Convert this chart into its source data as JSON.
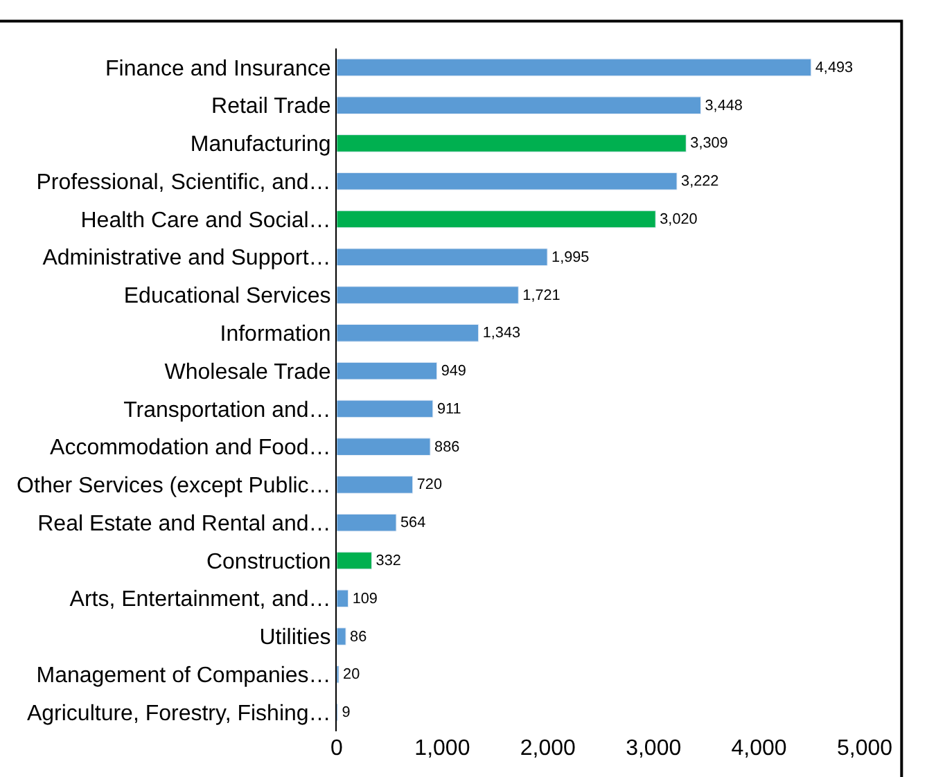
{
  "chart_data": {
    "type": "bar",
    "orientation": "horizontal",
    "categories": [
      "Finance and Insurance",
      "Retail Trade",
      "Manufacturing",
      "Professional, Scientific, and…",
      "Health Care and Social…",
      "Administrative and Support…",
      "Educational Services",
      "Information",
      "Wholesale Trade",
      "Transportation and…",
      "Accommodation and Food…",
      "Other Services (except Public…",
      "Real Estate and Rental and…",
      "Construction",
      "Arts, Entertainment, and…",
      "Utilities",
      "Management of Companies…",
      "Agriculture, Forestry, Fishing…"
    ],
    "values": [
      4493,
      3448,
      3309,
      3222,
      3020,
      1995,
      1721,
      1343,
      949,
      911,
      886,
      720,
      564,
      332,
      109,
      86,
      20,
      9
    ],
    "colors": [
      "#5b9bd5",
      "#5b9bd5",
      "#00b050",
      "#5b9bd5",
      "#00b050",
      "#5b9bd5",
      "#5b9bd5",
      "#5b9bd5",
      "#5b9bd5",
      "#5b9bd5",
      "#5b9bd5",
      "#5b9bd5",
      "#5b9bd5",
      "#00b050",
      "#5b9bd5",
      "#5b9bd5",
      "#5b9bd5",
      "#5b9bd5"
    ],
    "value_labels": [
      "4,493",
      "3,448",
      "3,309",
      "3,222",
      "3,020",
      "1,995",
      "1,721",
      "1,343",
      "949",
      "911",
      "886",
      "720",
      "564",
      "332",
      "109",
      "86",
      "20",
      "9"
    ],
    "xlim": [
      0,
      5000
    ],
    "xticks": [
      0,
      {
        "value": 1000,
        "label": "1,000"
      },
      {
        "value": 2000,
        "label": "2,000"
      },
      {
        "value": 3000,
        "label": "3,000"
      },
      {
        "value": 4000,
        "label": "4,000"
      },
      {
        "value": 5000,
        "label": "5,000"
      }
    ],
    "legend": false
  }
}
